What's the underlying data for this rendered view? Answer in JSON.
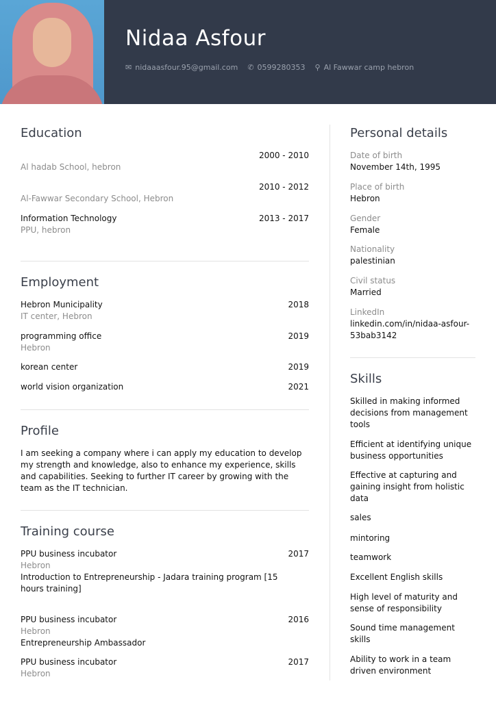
{
  "header": {
    "name": "Nidaa Asfour",
    "email": "nidaaasfour.95@gmail.com",
    "phone": "0599280353",
    "address": "Al Fawwar camp hebron",
    "icons": [
      "envelope-icon",
      "phone-icon",
      "map-pin-icon"
    ]
  },
  "colors": {
    "header_bg": "#323a4a",
    "muted": "#8c8c8c"
  },
  "education": {
    "title": "Education",
    "items": [
      {
        "title": "",
        "date": "2000 - 2010",
        "sub": "Al hadab School, hebron"
      },
      {
        "title": "",
        "date": "2010 - 2012",
        "sub": "Al-Fawwar Secondary School, Hebron"
      },
      {
        "title": "Information Technology",
        "date": "2013 - 2017",
        "sub": "PPU, hebron"
      }
    ]
  },
  "employment": {
    "title": "Employment",
    "items": [
      {
        "title": "Hebron Municipality",
        "date": "2018",
        "sub": "IT center, Hebron"
      },
      {
        "title": "programming office",
        "date": "2019",
        "sub": "Hebron"
      },
      {
        "title": "korean center",
        "date": "2019",
        "sub": ""
      },
      {
        "title": "world vision organization",
        "date": "2021",
        "sub": ""
      }
    ]
  },
  "profile": {
    "title": "Profile",
    "text": "I am seeking a company where i can apply my education to develop my strength and knowledge, also to enhance my experience, skills and  capabilities. Seeking to further IT career by growing with the team as the IT technician."
  },
  "training": {
    "title": "Training course",
    "items": [
      {
        "title": "PPU  business  incubator",
        "date": "2017",
        "sub": "Hebron",
        "desc": "Introduction to Entrepreneurship   - Jadara training program [15 hours training]"
      },
      {
        "title": "PPU  business  incubator",
        "date": "2016",
        "sub": "Hebron",
        "desc": "Entrepreneurship Ambassador"
      },
      {
        "title": "PPU  business  incubator",
        "date": "2017",
        "sub": "Hebron",
        "desc": ""
      }
    ]
  },
  "personal": {
    "title": "Personal details",
    "items": [
      {
        "label": "Date of birth",
        "value": "November 14th, 1995"
      },
      {
        "label": "Place of birth",
        "value": "Hebron"
      },
      {
        "label": "Gender",
        "value": "Female"
      },
      {
        "label": "Nationality",
        "value": "palestinian"
      },
      {
        "label": "Civil status",
        "value": "Married"
      },
      {
        "label": "LinkedIn",
        "value": "linkedin.com/in/nidaa-asfour-53bab3142"
      }
    ]
  },
  "skills": {
    "title": "Skills",
    "items": [
      "Skilled in making informed decisions from management tools",
      "Efficient at identifying unique business opportunities",
      "Effective at capturing and gaining insight from holistic data",
      "sales",
      "mintoring",
      "teamwork",
      "Excellent English skills",
      "High level of maturity and sense of responsibility",
      "Sound time management skills",
      "Ability to work in a team driven environment"
    ]
  }
}
